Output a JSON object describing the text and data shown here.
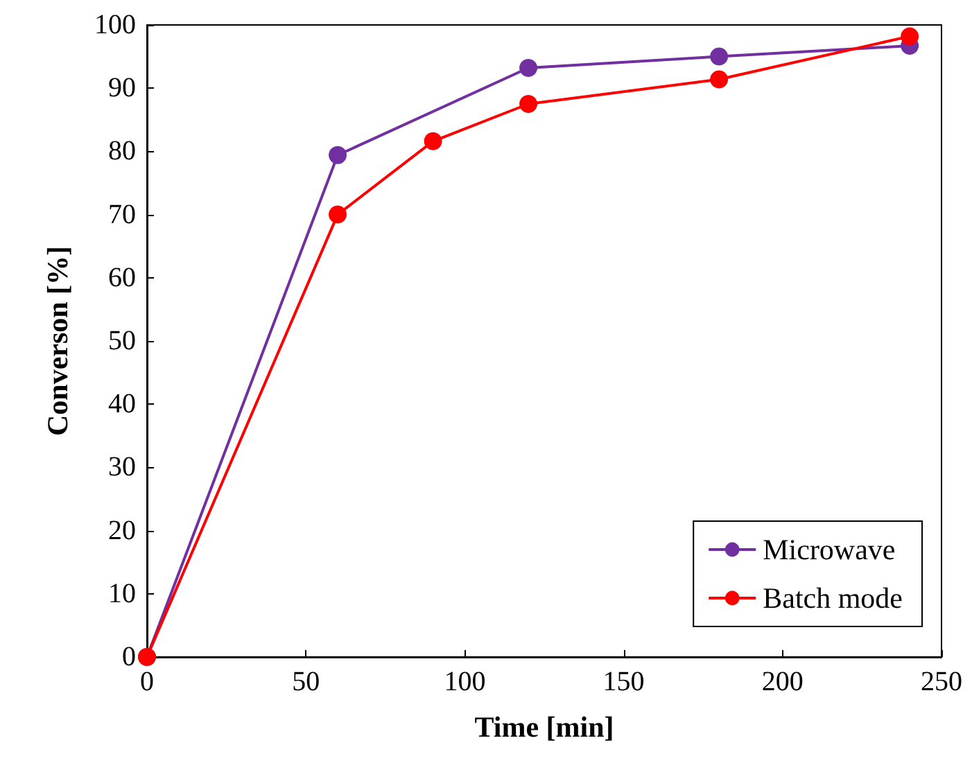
{
  "chart_data": {
    "type": "line",
    "xlabel": "Time [min]",
    "ylabel": "Converson [%]",
    "xlim": [
      0,
      250
    ],
    "xticks": [
      0,
      50,
      100,
      150,
      200,
      250
    ],
    "ylim": [
      0,
      100
    ],
    "yticks": [
      0,
      10,
      20,
      30,
      40,
      50,
      60,
      70,
      80,
      90,
      100
    ],
    "grid": false,
    "legend": "bottom right",
    "marker": "circle",
    "line_style": "solid",
    "series": [
      {
        "name": "Microwave",
        "color": "#7030a0",
        "x": [
          0,
          60,
          120,
          180,
          240
        ],
        "values": [
          0,
          79.4,
          93.2,
          95.0,
          96.7
        ]
      },
      {
        "name": "Batch mode",
        "color": "#ff0000",
        "x": [
          0,
          60,
          90,
          120,
          180,
          240
        ],
        "values": [
          0,
          70.0,
          81.6,
          87.5,
          91.4,
          98.2
        ]
      }
    ]
  }
}
